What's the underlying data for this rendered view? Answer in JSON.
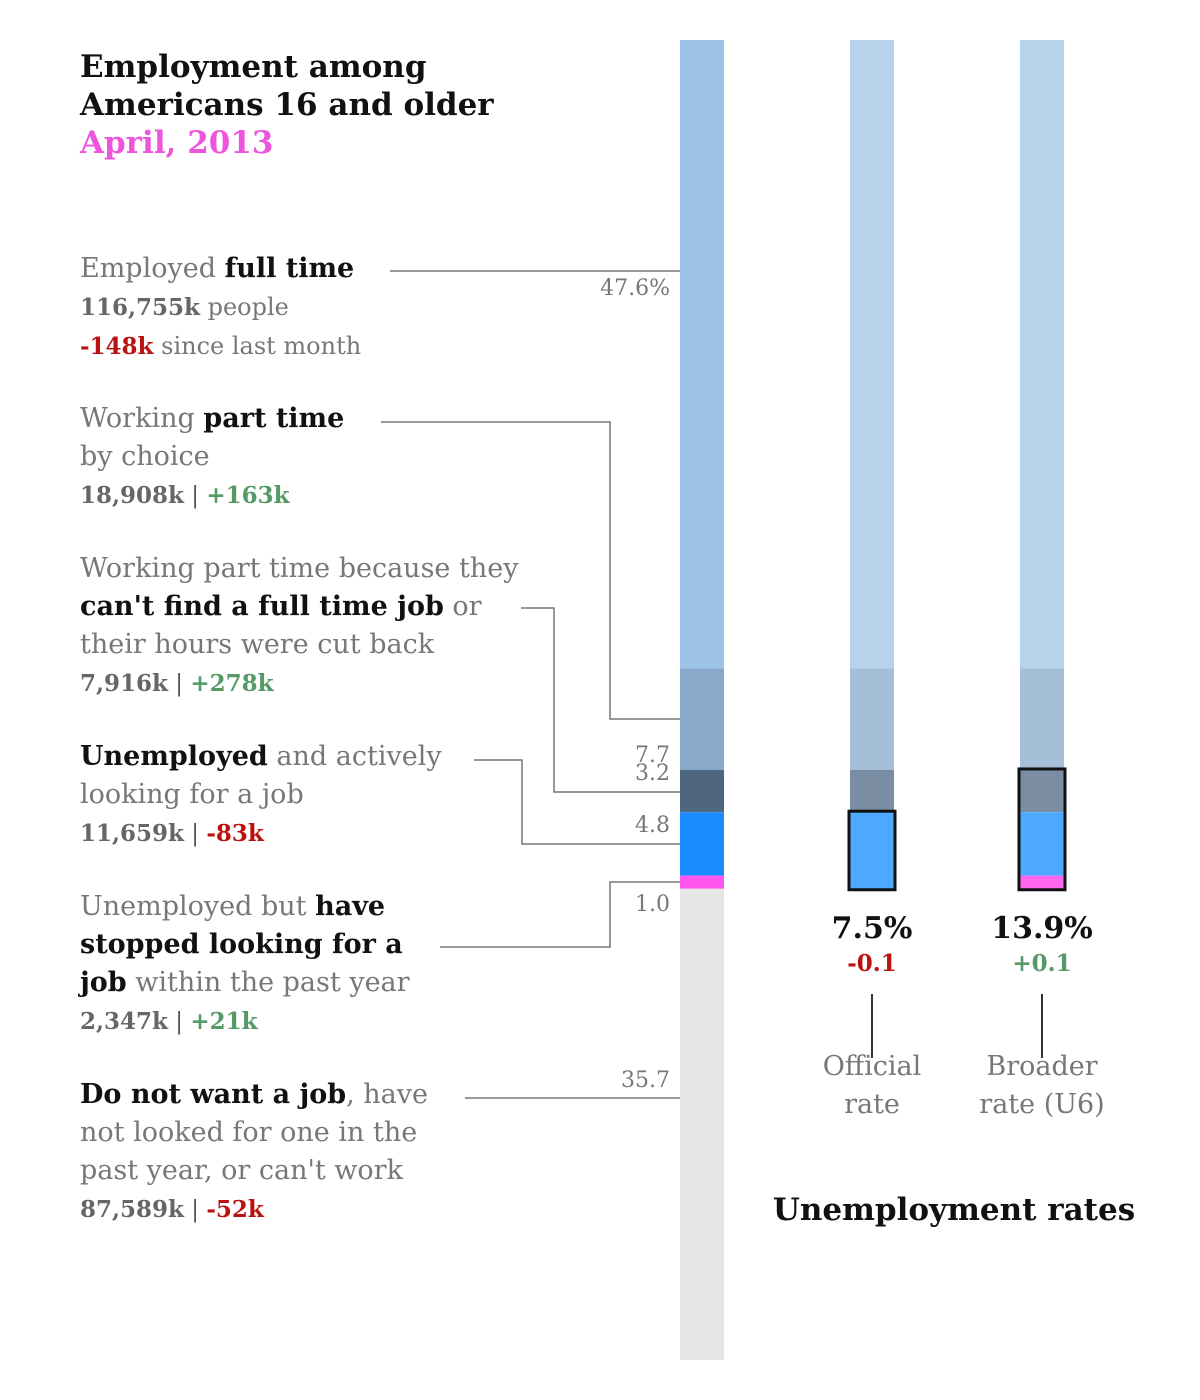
{
  "title": {
    "line1": "Employment among",
    "line2": "Americans 16 and older",
    "date": "April, 2013"
  },
  "chart_data": {
    "type": "bar",
    "stacked": true,
    "segments": [
      {
        "key": "full_time",
        "pct": 47.6,
        "pct_label": "47.6%",
        "color": "#9dc3e6"
      },
      {
        "key": "part_time_choice",
        "pct": 7.7,
        "pct_label": "7.7",
        "color": "#89aacb"
      },
      {
        "key": "part_time_econ",
        "pct": 3.2,
        "pct_label": "3.2",
        "color": "#4e6680"
      },
      {
        "key": "unemployed",
        "pct": 4.8,
        "pct_label": "4.8",
        "color": "#1a8cff"
      },
      {
        "key": "discouraged",
        "pct": 1.0,
        "pct_label": "1.0",
        "color": "#ff55ee"
      },
      {
        "key": "not_in_labor",
        "pct": 35.7,
        "pct_label": "35.7",
        "color": "#e6e6e6"
      }
    ],
    "rates": [
      {
        "name_line1": "Official",
        "name_line2": "rate",
        "value": "7.5%",
        "change": "-0.1",
        "direction": "neg",
        "outlined": [
          "unemployed",
          "discouraged"
        ]
      },
      {
        "name_line1": "Broader",
        "name_line2": "rate (U6)",
        "value": "13.9%",
        "change": "+0.1",
        "direction": "pos",
        "outlined": [
          "part_time_econ",
          "unemployed",
          "discouraged"
        ]
      }
    ],
    "rates_title": "Unemployment rates",
    "colors": {
      "light_full": "#b8d4ed",
      "light_part": "#a5bfd8",
      "rate_econ": "#7a8da3",
      "rate_unemp": "#4da9ff",
      "rate_disc": "#ff66ee",
      "neg": "#bb1111",
      "pos": "#559966"
    }
  },
  "labels": {
    "full_time": {
      "pre": "Employed ",
      "bold": "full time",
      "count": "116,755k",
      "count_suffix": " people",
      "change": "-148k",
      "change_suffix": " since last month"
    },
    "part_time_choice": {
      "pre": "Working ",
      "bold": "part time",
      "line2": "by choice",
      "count": "18,908k",
      "sep": " | ",
      "change": "+163k"
    },
    "part_time_econ": {
      "line1": "Working part time because they",
      "bold": "can't find a full time job",
      "after": " or",
      "line3": "their hours were cut back",
      "count": "7,916k",
      "sep": " | ",
      "change": "+278k"
    },
    "unemployed": {
      "bold": "Unemployed",
      "after": " and actively",
      "line2": "looking for a job",
      "count": "11,659k",
      "sep": " | ",
      "change": "-83k"
    },
    "discouraged": {
      "pre": "Unemployed but ",
      "bold1": "have",
      "bold2": "stopped looking for a",
      "bold3": "job",
      "after": " within the past year",
      "count": "2,347k",
      "sep": " | ",
      "change": "+21k"
    },
    "not_in_labor": {
      "bold": "Do not want a job",
      "after": ", have",
      "line2": "not looked for one in the",
      "line3": "past year, or can't work",
      "count": "87,589k",
      "sep": " | ",
      "change": "-52k"
    }
  }
}
